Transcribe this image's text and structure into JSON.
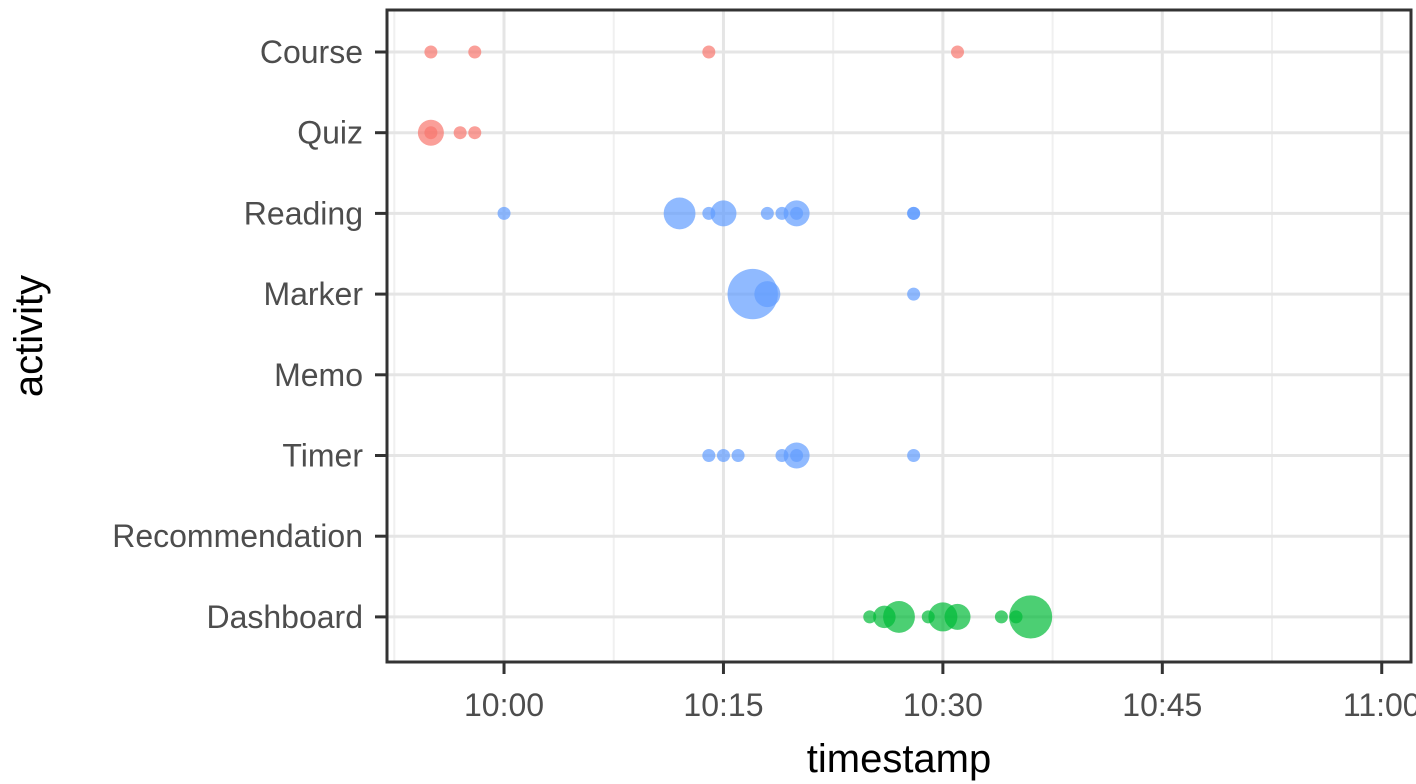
{
  "chart_data": {
    "type": "scatter",
    "xlabel": "timestamp",
    "ylabel": "activity",
    "x_unit": "clock time (HH:MM)",
    "xlim": [
      "09:52",
      "11:02"
    ],
    "x_ticks": [
      "10:00",
      "10:15",
      "10:30",
      "10:45",
      "11:00"
    ],
    "categories": [
      "Course",
      "Quiz",
      "Reading",
      "Marker",
      "Memo",
      "Timer",
      "Recommendation",
      "Dashboard"
    ],
    "grid": true,
    "legend": "none",
    "colors": {
      "red": "#F8766D",
      "blue": "#619CFF",
      "green": "#00BA38"
    },
    "points": [
      {
        "activity": "Course",
        "time": "09:55",
        "size": 1,
        "color": "red"
      },
      {
        "activity": "Course",
        "time": "09:58",
        "size": 1,
        "color": "red"
      },
      {
        "activity": "Course",
        "time": "10:14",
        "size": 1,
        "color": "red"
      },
      {
        "activity": "Course",
        "time": "10:31",
        "size": 1,
        "color": "red"
      },
      {
        "activity": "Quiz",
        "time": "09:55",
        "size": 4,
        "color": "red"
      },
      {
        "activity": "Quiz",
        "time": "09:55",
        "size": 1,
        "color": "red"
      },
      {
        "activity": "Quiz",
        "time": "09:57",
        "size": 1,
        "color": "red"
      },
      {
        "activity": "Quiz",
        "time": "09:58",
        "size": 1,
        "color": "red"
      },
      {
        "activity": "Reading",
        "time": "10:00",
        "size": 1,
        "color": "blue"
      },
      {
        "activity": "Reading",
        "time": "10:12",
        "size": 6,
        "color": "blue"
      },
      {
        "activity": "Reading",
        "time": "10:14",
        "size": 1,
        "color": "blue"
      },
      {
        "activity": "Reading",
        "time": "10:15",
        "size": 4,
        "color": "blue"
      },
      {
        "activity": "Reading",
        "time": "10:18",
        "size": 1,
        "color": "blue"
      },
      {
        "activity": "Reading",
        "time": "10:19",
        "size": 1,
        "color": "blue"
      },
      {
        "activity": "Reading",
        "time": "10:20",
        "size": 4,
        "color": "blue"
      },
      {
        "activity": "Reading",
        "time": "10:20",
        "size": 1,
        "color": "blue"
      },
      {
        "activity": "Reading",
        "time": "10:28",
        "size": 1,
        "color": "blue"
      },
      {
        "activity": "Reading",
        "time": "10:28",
        "size": 1,
        "color": "blue"
      },
      {
        "activity": "Marker",
        "time": "10:17",
        "size": 15,
        "color": "blue"
      },
      {
        "activity": "Marker",
        "time": "10:18",
        "size": 4,
        "color": "blue"
      },
      {
        "activity": "Marker",
        "time": "10:28",
        "size": 1,
        "color": "blue"
      },
      {
        "activity": "Timer",
        "time": "10:14",
        "size": 1,
        "color": "blue"
      },
      {
        "activity": "Timer",
        "time": "10:15",
        "size": 1,
        "color": "blue"
      },
      {
        "activity": "Timer",
        "time": "10:16",
        "size": 1,
        "color": "blue"
      },
      {
        "activity": "Timer",
        "time": "10:19",
        "size": 1,
        "color": "blue"
      },
      {
        "activity": "Timer",
        "time": "10:20",
        "size": 4,
        "color": "blue"
      },
      {
        "activity": "Timer",
        "time": "10:20",
        "size": 1,
        "color": "blue"
      },
      {
        "activity": "Timer",
        "time": "10:28",
        "size": 1,
        "color": "blue"
      },
      {
        "activity": "Dashboard",
        "time": "10:25",
        "size": 1,
        "color": "green"
      },
      {
        "activity": "Dashboard",
        "time": "10:26",
        "size": 3,
        "color": "green"
      },
      {
        "activity": "Dashboard",
        "time": "10:27",
        "size": 6,
        "color": "green"
      },
      {
        "activity": "Dashboard",
        "time": "10:29",
        "size": 1,
        "color": "green"
      },
      {
        "activity": "Dashboard",
        "time": "10:30",
        "size": 5,
        "color": "green"
      },
      {
        "activity": "Dashboard",
        "time": "10:31",
        "size": 4,
        "color": "green"
      },
      {
        "activity": "Dashboard",
        "time": "10:34",
        "size": 1,
        "color": "green"
      },
      {
        "activity": "Dashboard",
        "time": "10:36",
        "size": 11,
        "color": "green"
      },
      {
        "activity": "Dashboard",
        "time": "10:35",
        "size": 1,
        "color": "green"
      }
    ]
  }
}
